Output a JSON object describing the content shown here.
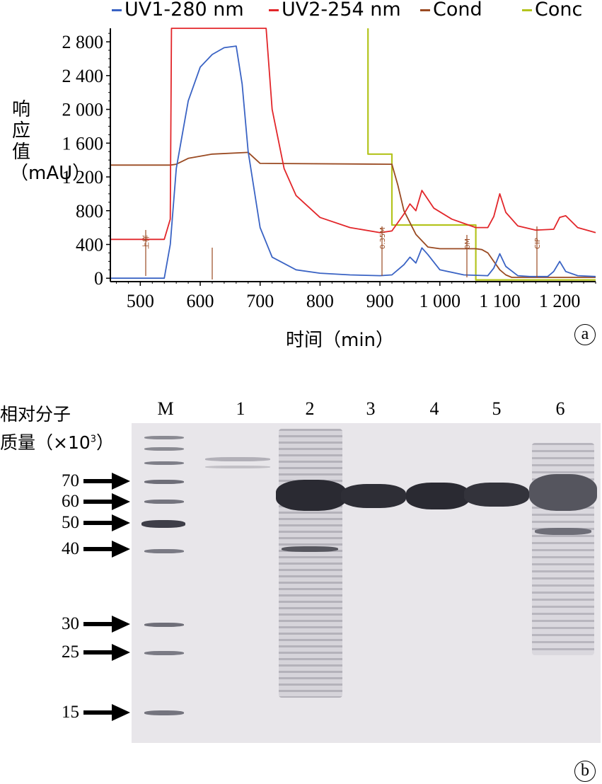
{
  "chart_data": {
    "type": "line",
    "legend": [
      "UV1-280 nm",
      "UV2-254 nm",
      "Cond",
      "Conc"
    ],
    "series_colors": {
      "UV1-280 nm": "#3a63c4",
      "UV2-254 nm": "#e2262a",
      "Cond": "#9a4a22",
      "Conc": "#b4c41e"
    },
    "ylabel": "响应值（mAU）",
    "xlabel": "时间（min）",
    "xlim": [
      450,
      1260
    ],
    "ylim": [
      -40,
      2960
    ],
    "y_ticks": [
      0,
      400,
      800,
      1200,
      1600,
      2000,
      2400,
      2800
    ],
    "y_tick_labels": [
      "0",
      "400",
      "800",
      "1 200",
      "1 600",
      "2 000",
      "2 400",
      "2 800"
    ],
    "x_ticks": [
      500,
      600,
      700,
      800,
      900,
      1000,
      1100,
      1200
    ],
    "x_tick_labels": [
      "500",
      "600",
      "700",
      "800",
      "900",
      "1 000",
      "1 100",
      "1 200"
    ],
    "series": [
      {
        "name": "UV1-280 nm",
        "x": [
          450,
          540,
          550,
          560,
          580,
          600,
          620,
          640,
          660,
          670,
          680,
          700,
          720,
          760,
          800,
          850,
          900,
          920,
          940,
          950,
          960,
          970,
          980,
          1000,
          1040,
          1080,
          1090,
          1100,
          1110,
          1130,
          1150,
          1180,
          1190,
          1200,
          1210,
          1230,
          1260
        ],
        "y": [
          0,
          0,
          400,
          1300,
          2100,
          2500,
          2650,
          2730,
          2750,
          2300,
          1500,
          600,
          250,
          100,
          60,
          40,
          30,
          40,
          160,
          250,
          180,
          360,
          280,
          100,
          40,
          30,
          120,
          290,
          140,
          30,
          20,
          20,
          80,
          200,
          80,
          30,
          20
        ]
      },
      {
        "name": "UV2-254 nm",
        "x": [
          450,
          540,
          550,
          552,
          710,
          720,
          740,
          760,
          800,
          850,
          900,
          920,
          940,
          950,
          960,
          970,
          990,
          1020,
          1060,
          1080,
          1090,
          1100,
          1110,
          1130,
          1160,
          1190,
          1200,
          1210,
          1230,
          1260
        ],
        "y": [
          460,
          460,
          700,
          2960,
          2960,
          2000,
          1300,
          980,
          720,
          600,
          540,
          560,
          760,
          880,
          800,
          1040,
          830,
          700,
          600,
          600,
          730,
          1000,
          780,
          620,
          570,
          580,
          720,
          740,
          600,
          540
        ]
      },
      {
        "name": "Cond",
        "x": [
          450,
          550,
          560,
          580,
          620,
          680,
          700,
          920,
          930,
          940,
          960,
          980,
          1000,
          1060,
          1070,
          1080,
          1090,
          1100,
          1110,
          1120,
          1260
        ],
        "y": [
          1340,
          1340,
          1350,
          1420,
          1470,
          1490,
          1360,
          1350,
          1100,
          800,
          520,
          370,
          350,
          350,
          340,
          300,
          200,
          100,
          40,
          10,
          10
        ]
      },
      {
        "name": "Conc",
        "x": [
          880,
          880,
          920,
          920,
          1060,
          1060,
          1260
        ],
        "y": [
          2960,
          1470,
          1470,
          630,
          630,
          -20,
          -20
        ]
      }
    ],
    "annotations": [
      "上样",
      "0.35M",
      "0M",
      "CIP"
    ]
  },
  "panel_a_tag": "a",
  "panel_b_tag": "b",
  "gel": {
    "ylabel_line1": "相对分子",
    "ylabel_line2": "质量（×10",
    "ylabel_sup": "3",
    "ylabel_close": "）",
    "lanes": [
      "M",
      "1",
      "2",
      "3",
      "4",
      "5",
      "6"
    ],
    "marker_labels": [
      "70",
      "60",
      "50",
      "40",
      "30",
      "25",
      "15"
    ],
    "marker_mw": [
      70,
      60,
      50,
      40,
      30,
      25,
      15
    ]
  }
}
